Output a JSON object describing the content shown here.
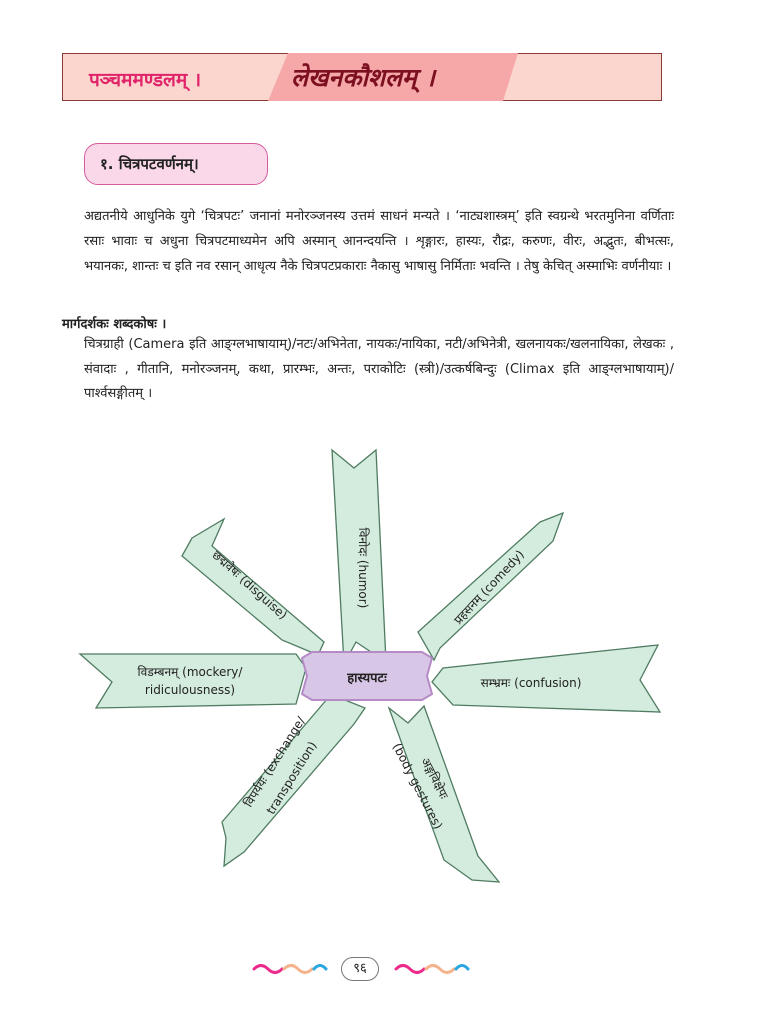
{
  "header": {
    "section_label": "पञ्चममण्डलम् ।",
    "title": "लेखनकौशलम् ।"
  },
  "section": {
    "label": "१. चित्रपटवर्णनम्।"
  },
  "paragraph": "अद्यतनीये आधुनिके युगे ‘चित्रपटः’ जनानां मनोरञ्जनस्य उत्तमं साधनं मन्यते । ‘नाट्यशास्त्रम्’ इति स्वग्रन्थे भरतमुनिना वर्णिताः रसाः भावाः च अधुना चित्रपटमाध्यमेन अपि अस्मान् आनन्दयन्ति । शृङ्गारः, हास्यः, रौद्रः, करुणः, वीरः, अद्भुतः, बीभत्सः, भयानकः, शान्तः च इति नव रसान् आधृत्य नैके चित्रपटप्रकाराः नैकासु भाषासु निर्मिताः भवन्ति । तेषु केचित् अस्माभिः वर्णनीयाः ।",
  "glossary": {
    "title": "मार्गदर्शकः शब्दकोषः ।",
    "text": "चित्रग्राही (Camera इति आङ्ग्लभाषायाम्)/नटः/अभिनेता, नायकः/नायिका, नटी/अभिनेत्री, खलनायकः/खलनायिका, लेखकः , संवादाः , गीतानि, मनोरञ्जनम्, कथा, प्रारम्भः, अन्तः, पराकोटिः (स्त्री)/उत्कर्षबिन्दुः (Climax इति आङ्ग्लभाषायाम्)/पार्श्वसङ्गीतम् ।"
  },
  "diagram": {
    "center": "हास्यपटः",
    "arrows": [
      {
        "id": "top",
        "line1": "विनोदः (humor)",
        "line2": ""
      },
      {
        "id": "upper-right",
        "line1": "प्रहसनम् (comedy)",
        "line2": ""
      },
      {
        "id": "right",
        "line1": "सम्भ्रमः (confusion)",
        "line2": ""
      },
      {
        "id": "lower-right",
        "line1": "अङ्गविक्षेपः",
        "line2": "(body gestures)"
      },
      {
        "id": "lower-left",
        "line1": "विपर्ययः (exchange/",
        "line2": "transposition)"
      },
      {
        "id": "left",
        "line1": "विडम्बनम् (mockery/",
        "line2": "ridiculousness)"
      },
      {
        "id": "upper-left",
        "line1": "छद्मवेषः (disguise)",
        "line2": ""
      }
    ]
  },
  "footer": {
    "page_number": "९६"
  },
  "colors": {
    "arrow_fill": "#d4ecde",
    "arrow_stroke": "#4f7c61",
    "center_fill": "#d8c6e6",
    "center_stroke": "#b58bc7",
    "wave_pink": "#ec2a8b",
    "wave_blue": "#2aa7e0",
    "wave_peach": "#f4b38c"
  }
}
